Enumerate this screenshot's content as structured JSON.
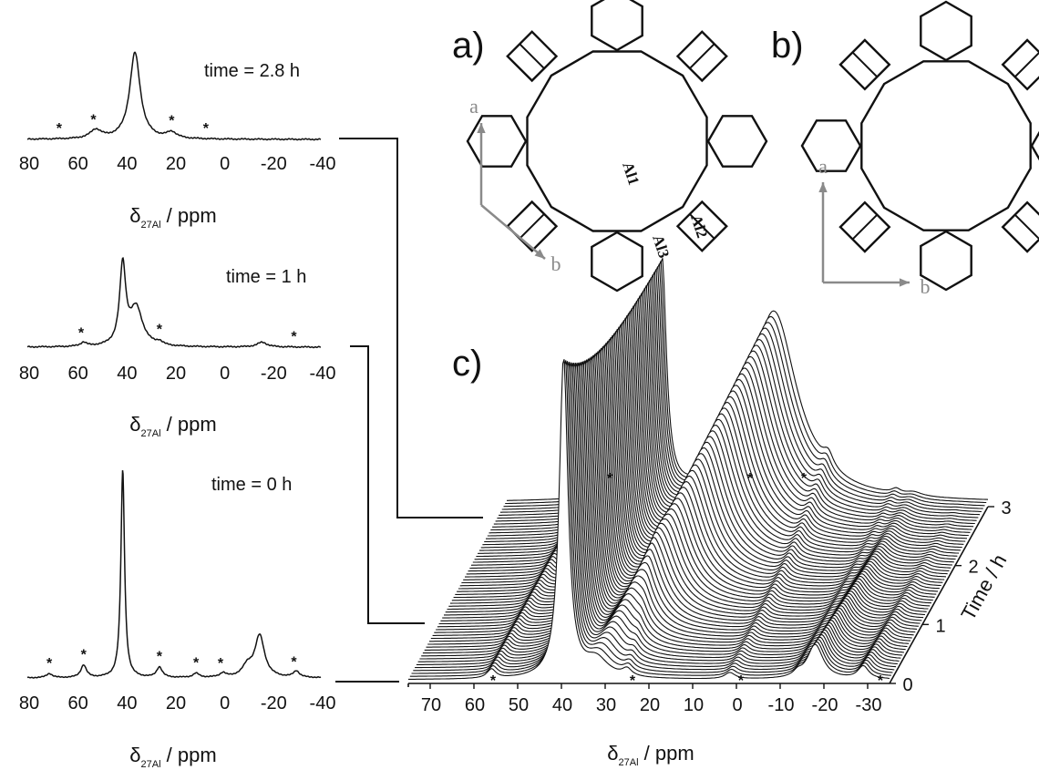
{
  "chart_data": [
    {
      "panel": "spectrum_2.8h",
      "type": "line",
      "annotation": "time = 2.8 h",
      "xlabel": "δ27Al / ppm",
      "xlim": [
        80,
        -40
      ],
      "xticks": [
        "80",
        "60",
        "40",
        "20",
        "0",
        "-20",
        "-40"
      ],
      "peaks": [
        {
          "x": 36,
          "height": 1.0,
          "width": 2.6
        },
        {
          "x": 52,
          "height": 0.1,
          "width": 2.8
        },
        {
          "x": 21,
          "height": 0.07,
          "width": 2.5
        }
      ],
      "asterisks_ppm": [
        67,
        53,
        21,
        7
      ]
    },
    {
      "panel": "spectrum_1h",
      "type": "line",
      "annotation": "time = 1 h",
      "xlabel": "δ27Al / ppm",
      "xlim": [
        80,
        -40
      ],
      "xticks": [
        "80",
        "60",
        "40",
        "20",
        "0",
        "-20",
        "-40"
      ],
      "peaks": [
        {
          "x": 41,
          "height": 1.0,
          "width": 1.5
        },
        {
          "x": 35.5,
          "height": 0.48,
          "width": 3.2
        },
        {
          "x": 57,
          "height": 0.05,
          "width": 1.5
        },
        {
          "x": 26,
          "height": 0.04,
          "width": 1.5
        },
        {
          "x": -16,
          "height": 0.06,
          "width": 2.5
        }
      ],
      "asterisks_ppm": [
        58,
        26,
        -29
      ]
    },
    {
      "panel": "spectrum_0h",
      "type": "line",
      "annotation": "time = 0 h",
      "xlabel": "δ27Al / ppm",
      "xlim": [
        80,
        -40
      ],
      "xticks": [
        "80",
        "60",
        "40",
        "20",
        "0",
        "-20",
        "-40"
      ],
      "peaks": [
        {
          "x": 41,
          "height": 1.0,
          "width": 0.9
        },
        {
          "x": 57,
          "height": 0.06,
          "width": 1.4
        },
        {
          "x": 26,
          "height": 0.05,
          "width": 1.4
        },
        {
          "x": 71,
          "height": 0.02,
          "width": 1.5
        },
        {
          "x": 11,
          "height": 0.02,
          "width": 1.5
        },
        {
          "x": 0,
          "height": 0.02,
          "width": 1.5
        },
        {
          "x": -15,
          "height": 0.2,
          "width": 2.4
        },
        {
          "x": -10,
          "height": 0.05,
          "width": 2.5
        },
        {
          "x": -30,
          "height": 0.03,
          "width": 1.5
        }
      ],
      "asterisks_ppm": [
        71,
        57,
        26,
        11,
        1,
        -29
      ]
    },
    {
      "panel": "c",
      "type": "line",
      "label": "c)",
      "xlabel": "δ27Al / ppm",
      "ylabel": "Time / h",
      "xlim": [
        75,
        -35
      ],
      "ylim": [
        0,
        3
      ],
      "xticks": [
        "70",
        "60",
        "50",
        "40",
        "30",
        "20",
        "10",
        "0",
        "-10",
        "-20",
        "-30"
      ],
      "yticks": [
        "0",
        "1",
        "2",
        "3"
      ],
      "n_traces": 62,
      "asterisks_ppm": [
        56,
        29,
        25,
        1,
        2,
        -14,
        -31
      ]
    }
  ],
  "structure_a": {
    "label": "a)",
    "axis_a": "a",
    "axis_b": "b",
    "sites": [
      "Al1",
      "Al2",
      "Al3"
    ]
  },
  "structure_b": {
    "label": "b)",
    "axis_a": "a",
    "axis_b": "b"
  },
  "colors": {
    "ink": "#111111",
    "axis_arrow": "#8a8a8a",
    "background": "#ffffff"
  }
}
